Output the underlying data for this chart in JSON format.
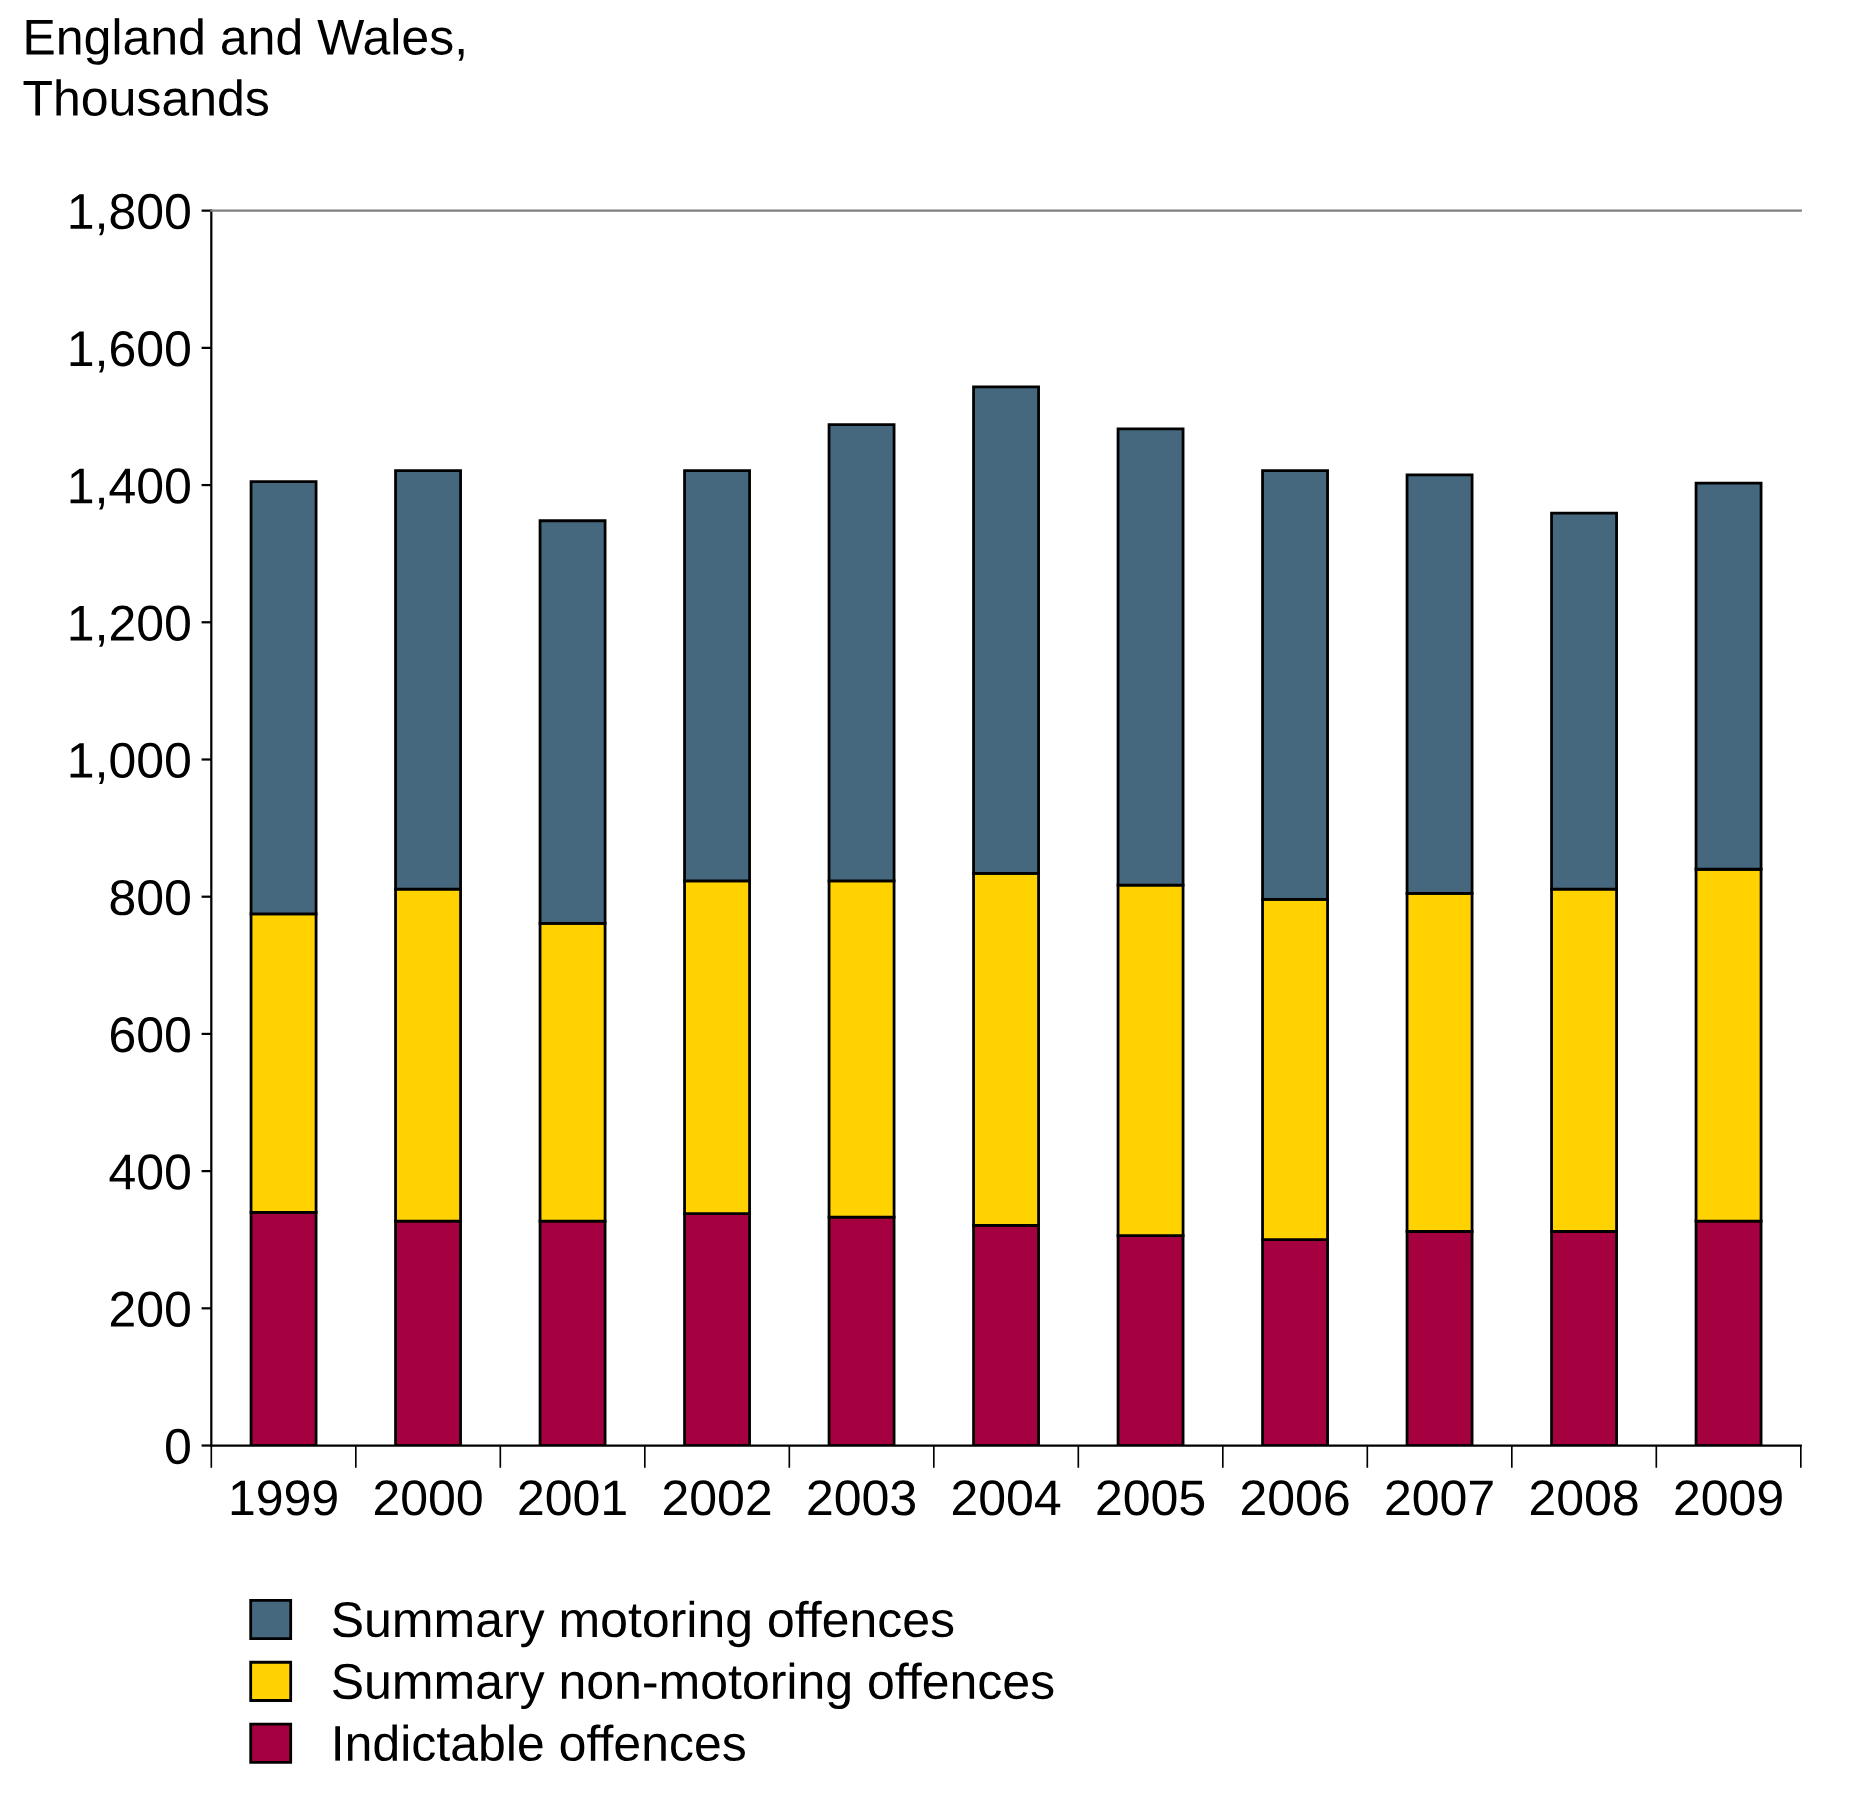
{
  "chart_data": {
    "type": "bar",
    "title": "England and Wales,\nThousands",
    "stacked": true,
    "categories": [
      "1999",
      "2000",
      "2001",
      "2002",
      "2003",
      "2004",
      "2005",
      "2006",
      "2007",
      "2008",
      "2009"
    ],
    "series": [
      {
        "name": "Indictable offences",
        "color": "#a50040",
        "values": [
          340,
          327,
          327,
          338,
          333,
          321,
          306,
          300,
          312,
          312,
          327
        ]
      },
      {
        "name": "Summary non-motoring offences",
        "color": "#ffd200",
        "values": [
          435,
          484,
          434,
          485,
          490,
          513,
          511,
          496,
          493,
          499,
          513
        ]
      },
      {
        "name": "Summary motoring offences",
        "color": "#46687e",
        "values": [
          630,
          610,
          587,
          598,
          665,
          709,
          665,
          625,
          610,
          548,
          563
        ]
      }
    ],
    "ylim": [
      0,
      1800
    ],
    "yticks": [
      0,
      200,
      400,
      600,
      800,
      {
        "value": 1000,
        "label": "1,000"
      },
      {
        "value": 1200,
        "label": "1,200"
      },
      {
        "value": 1400,
        "label": "1,400"
      },
      {
        "value": 1600,
        "label": "1,600"
      },
      {
        "value": 1800,
        "label": "1,800"
      }
    ],
    "grid": false,
    "legend": "bottom"
  }
}
